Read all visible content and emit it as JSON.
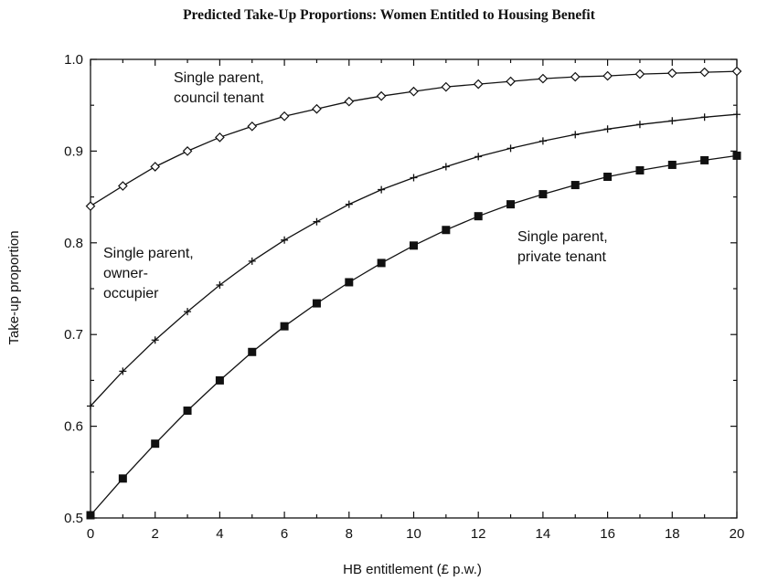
{
  "chart_data": {
    "type": "line",
    "title": "Predicted Take-Up Proportions: Women Entitled to Housing Benefit",
    "xlabel": "HB entitlement (£ p.w.)",
    "ylabel": "Take-up proportion",
    "xlim": [
      0,
      20
    ],
    "ylim": [
      0.5,
      1.0
    ],
    "xticks": [
      "0",
      "2",
      "4",
      "6",
      "8",
      "10",
      "12",
      "14",
      "16",
      "18",
      "20"
    ],
    "yticks": [
      "0.5",
      "0.6",
      "0.7",
      "0.8",
      "0.9",
      "1.0"
    ],
    "grid": false,
    "x": [
      0,
      1,
      2,
      3,
      4,
      5,
      6,
      7,
      8,
      9,
      10,
      11,
      12,
      13,
      14,
      15,
      16,
      17,
      18,
      19,
      20
    ],
    "series": [
      {
        "name": "Single parent, council tenant",
        "marker": "diamond",
        "values": [
          0.84,
          0.862,
          0.883,
          0.9,
          0.915,
          0.927,
          0.938,
          0.946,
          0.954,
          0.96,
          0.965,
          0.97,
          0.973,
          0.976,
          0.979,
          0.981,
          0.982,
          0.984,
          0.985,
          0.986,
          0.987
        ]
      },
      {
        "name": "Single parent, owner-occupier",
        "marker": "plus",
        "values": [
          0.622,
          0.66,
          0.694,
          0.725,
          0.754,
          0.78,
          0.803,
          0.823,
          0.842,
          0.858,
          0.871,
          0.883,
          0.894,
          0.903,
          0.911,
          0.918,
          0.924,
          0.929,
          0.933,
          0.937,
          0.94
        ]
      },
      {
        "name": "Single parent, private tenant",
        "marker": "square",
        "values": [
          0.503,
          0.543,
          0.581,
          0.617,
          0.65,
          0.681,
          0.709,
          0.734,
          0.757,
          0.778,
          0.797,
          0.814,
          0.829,
          0.842,
          0.853,
          0.863,
          0.872,
          0.879,
          0.885,
          0.89,
          0.895
        ]
      }
    ],
    "annotations": [
      {
        "lines": [
          "Single parent,",
          "council tenant"
        ]
      },
      {
        "lines": [
          "Single parent,",
          "owner-",
          "occupier"
        ]
      },
      {
        "lines": [
          "Single parent,",
          "private tenant"
        ]
      }
    ]
  }
}
